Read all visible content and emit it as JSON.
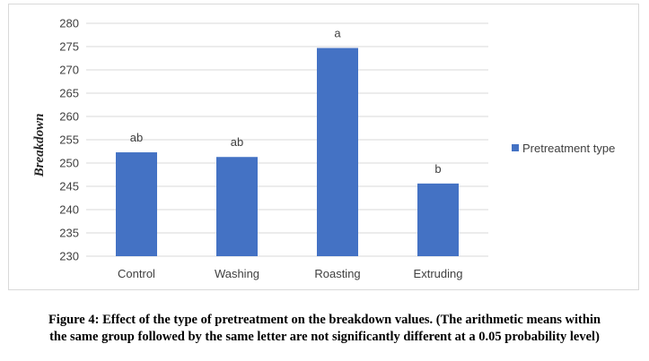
{
  "caption": {
    "line1": "Figure 4: Effect of the type of pretreatment on the breakdown values. (The arithmetic means within",
    "line2": "the same group followed by the same letter are not significantly different at a 0.05 probability level)"
  },
  "chart_data": {
    "type": "bar",
    "categories": [
      "Control",
      "Washing",
      "Roasting",
      "Extruding"
    ],
    "series": [
      {
        "name": "Pretreatment type",
        "values": [
          252.3,
          251.3,
          274.7,
          245.6
        ],
        "color": "#4472c4"
      }
    ],
    "data_labels": [
      "ab",
      "ab",
      "a",
      "b"
    ],
    "title": "",
    "xlabel": "",
    "ylabel": "Breakdown",
    "ylim": [
      230,
      280
    ],
    "yticks": [
      230,
      235,
      240,
      245,
      250,
      255,
      260,
      265,
      270,
      275,
      280
    ],
    "grid": true,
    "legend_position": "right"
  }
}
